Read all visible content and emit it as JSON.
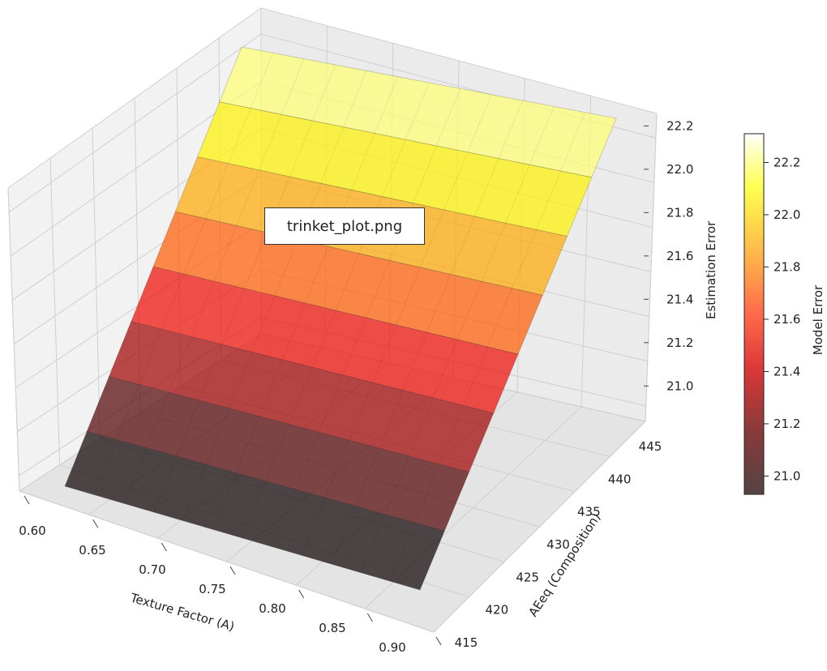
{
  "tooltip": {
    "text": "trinket_plot.png"
  },
  "chart_data": {
    "type": "surface",
    "xlabel": "Texture Factor (A)",
    "ylabel": "AEeq (Composition)",
    "zlabel": "Estimation Error",
    "colorbar_label": "Model Error",
    "colormap": "hot (alpha 0.7)",
    "x_ticks": [
      0.6,
      0.65,
      0.7,
      0.75,
      0.8,
      0.85,
      0.9
    ],
    "y_ticks": [
      415,
      420,
      425,
      430,
      435,
      440,
      445
    ],
    "z_ticks": [
      21.0,
      21.2,
      21.4,
      21.6,
      21.8,
      22.0,
      22.2
    ],
    "colorbar_ticks": [
      21.0,
      21.2,
      21.4,
      21.6,
      21.8,
      22.0,
      22.2
    ],
    "xlim": [
      0.6,
      0.9
    ],
    "ylim": [
      415,
      445
    ],
    "zlim": [
      20.93,
      22.31
    ],
    "surface_bands": [
      {
        "z": 20.93,
        "color": "#0b0000"
      },
      {
        "z": 21.1,
        "color": "#500000"
      },
      {
        "z": 21.27,
        "color": "#a00000"
      },
      {
        "z": 21.45,
        "color": "#ee0a00"
      },
      {
        "z": 21.62,
        "color": "#ff5a00"
      },
      {
        "z": 21.79,
        "color": "#ffa800"
      },
      {
        "z": 21.97,
        "color": "#fff200"
      },
      {
        "z": 22.14,
        "color": "#ffff70"
      },
      {
        "z": 22.31,
        "color": "#ffffff"
      }
    ],
    "grid": true
  }
}
